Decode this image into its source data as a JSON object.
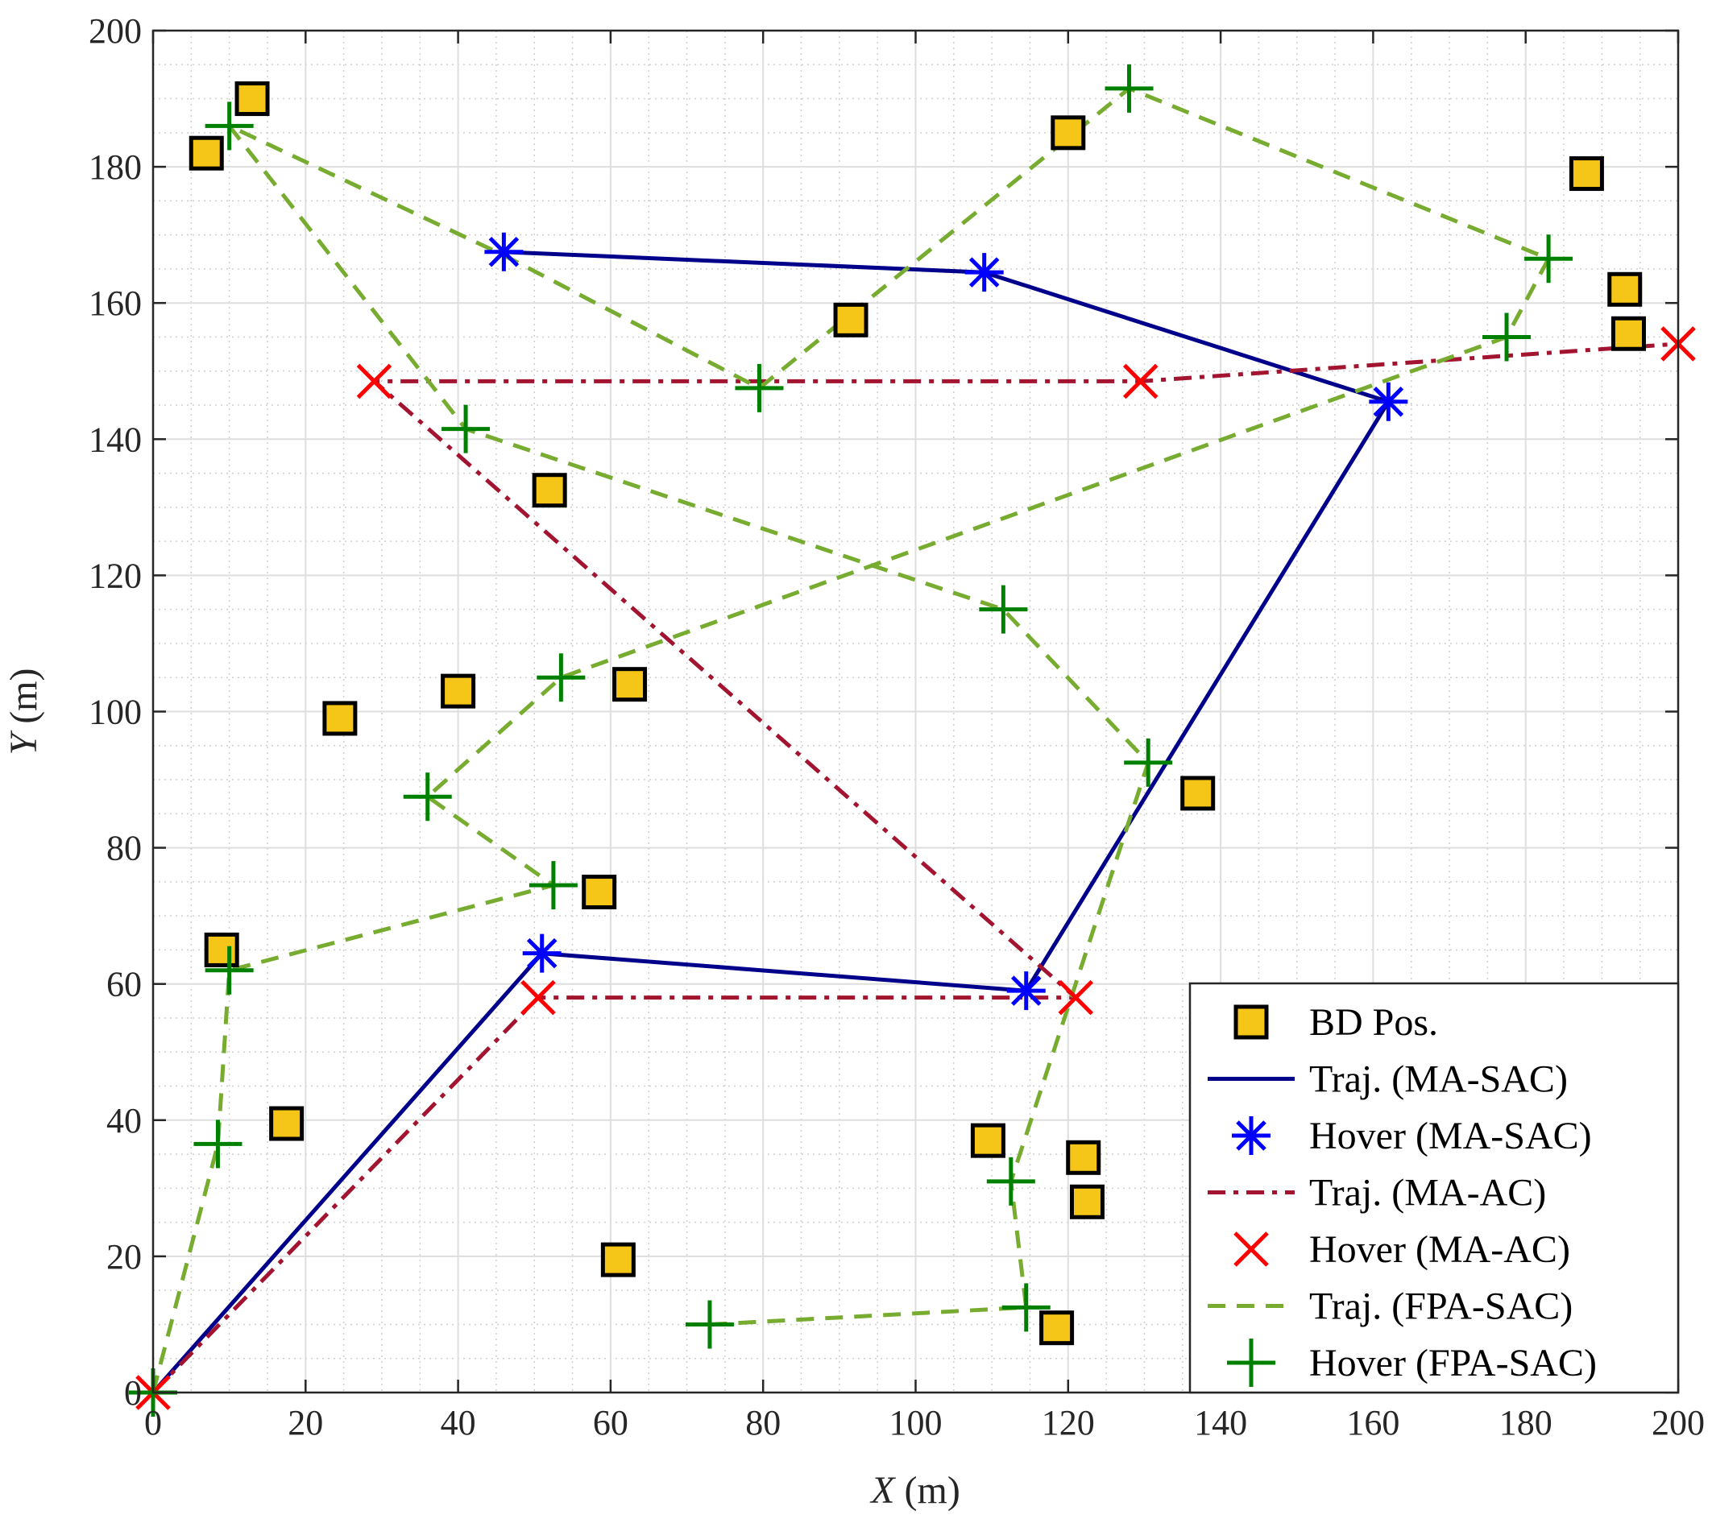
{
  "chart_data": {
    "type": "scatter",
    "title": "",
    "xlabel": {
      "var": "X",
      "unit": " (m)"
    },
    "ylabel": {
      "var": "Y",
      "unit": " (m)"
    },
    "xlim": [
      0,
      200
    ],
    "ylim": [
      0,
      200
    ],
    "xticks": [
      0,
      20,
      40,
      60,
      80,
      100,
      120,
      140,
      160,
      180,
      200
    ],
    "yticks": [
      0,
      20,
      40,
      60,
      80,
      100,
      120,
      140,
      160,
      180,
      200
    ],
    "grid": true,
    "legend_position": "bottom-right",
    "series": [
      {
        "name": "BD Pos.",
        "kind": "markers",
        "marker": "square",
        "color": "#F5C518",
        "points": [
          [
            7,
            182
          ],
          [
            13,
            190
          ],
          [
            120,
            185
          ],
          [
            188,
            179
          ],
          [
            91.5,
            157.5
          ],
          [
            193,
            162
          ],
          [
            193.5,
            155.5
          ],
          [
            52,
            132.5
          ],
          [
            24.5,
            99
          ],
          [
            40,
            103
          ],
          [
            62.5,
            104
          ],
          [
            137,
            88
          ],
          [
            58.5,
            73.5
          ],
          [
            9,
            65
          ],
          [
            17.5,
            39.5
          ],
          [
            109.5,
            37
          ],
          [
            122,
            34.5
          ],
          [
            122.5,
            28
          ],
          [
            61,
            19.5
          ],
          [
            118.5,
            9.5
          ]
        ]
      },
      {
        "name": "Traj. (MA-SAC)",
        "kind": "line",
        "style": "solid",
        "color": "#00008B",
        "points": [
          [
            0,
            0
          ],
          [
            51,
            64.5
          ],
          [
            114.5,
            59
          ],
          [
            162,
            145.5
          ],
          [
            109,
            164.5
          ],
          [
            46,
            167.5
          ]
        ]
      },
      {
        "name": "Hover (MA-SAC)",
        "kind": "markers",
        "marker": "asterisk",
        "color": "#0000FF",
        "points": [
          [
            51,
            64.5
          ],
          [
            114.5,
            59
          ],
          [
            162,
            145.5
          ],
          [
            109,
            164.5
          ],
          [
            46,
            167.5
          ]
        ]
      },
      {
        "name": "Traj. (MA-AC)",
        "kind": "line",
        "style": "dashdot",
        "color": "#A2142F",
        "points": [
          [
            0,
            0
          ],
          [
            50.5,
            58
          ],
          [
            121,
            58
          ],
          [
            29,
            148.5
          ],
          [
            129.5,
            148.5
          ],
          [
            200,
            154
          ]
        ]
      },
      {
        "name": "Hover (MA-AC)",
        "kind": "markers",
        "marker": "x",
        "color": "#FF0000",
        "points": [
          [
            0,
            0
          ],
          [
            50.5,
            58
          ],
          [
            121,
            58
          ],
          [
            29,
            148.5
          ],
          [
            129.5,
            148.5
          ],
          [
            200,
            154
          ]
        ]
      },
      {
        "name": "Traj. (FPA-SAC)",
        "kind": "line",
        "style": "dashed",
        "color": "#77AC30",
        "points": [
          [
            0,
            0
          ],
          [
            8.5,
            36.5
          ],
          [
            10,
            62
          ],
          [
            52.5,
            74.5
          ],
          [
            36,
            87.5
          ],
          [
            53.5,
            105
          ],
          [
            177.5,
            155
          ],
          [
            183,
            166.5
          ],
          [
            128,
            191.5
          ],
          [
            79.5,
            147.5
          ],
          [
            46,
            167
          ],
          [
            10,
            186
          ],
          [
            41,
            141.5
          ],
          [
            111.5,
            115
          ],
          [
            130.5,
            92.5
          ],
          [
            112.5,
            31
          ],
          [
            114.5,
            12.5
          ],
          [
            73,
            10
          ]
        ]
      },
      {
        "name": "Hover (FPA-SAC)",
        "kind": "markers",
        "marker": "plus",
        "color": "#008000",
        "points": [
          [
            0,
            0
          ],
          [
            8.5,
            36.5
          ],
          [
            10,
            62
          ],
          [
            52.5,
            74.5
          ],
          [
            36,
            87.5
          ],
          [
            53.5,
            105
          ],
          [
            177.5,
            155
          ],
          [
            183,
            166.5
          ],
          [
            128,
            191.5
          ],
          [
            79.5,
            147.5
          ],
          [
            10,
            186
          ],
          [
            41,
            141.5
          ],
          [
            111.5,
            115
          ],
          [
            130.5,
            92.5
          ],
          [
            112.5,
            31
          ],
          [
            114.5,
            12.5
          ],
          [
            73,
            10
          ]
        ]
      }
    ]
  }
}
